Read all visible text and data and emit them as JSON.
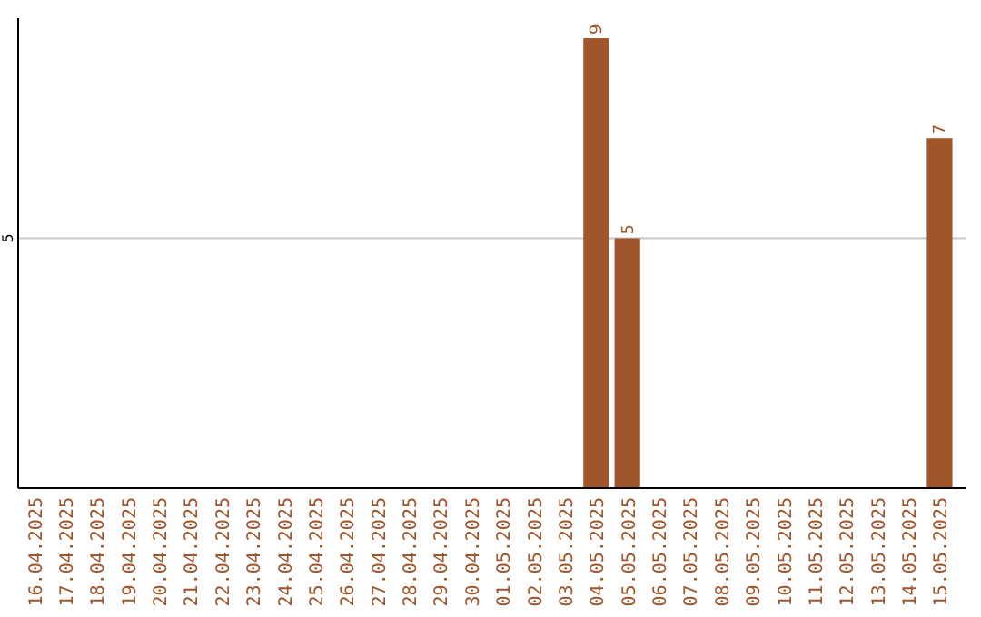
{
  "chart_data": {
    "type": "bar",
    "categories": [
      "16.04.2025",
      "17.04.2025",
      "18.04.2025",
      "19.04.2025",
      "20.04.2025",
      "21.04.2025",
      "22.04.2025",
      "23.04.2025",
      "24.04.2025",
      "25.04.2025",
      "26.04.2025",
      "27.04.2025",
      "28.04.2025",
      "29.04.2025",
      "30.04.2025",
      "01.05.2025",
      "02.05.2025",
      "03.05.2025",
      "04.05.2025",
      "05.05.2025",
      "06.05.2025",
      "07.05.2025",
      "08.05.2025",
      "09.05.2025",
      "10.05.2025",
      "11.05.2025",
      "12.05.2025",
      "13.05.2025",
      "14.05.2025",
      "15.05.2025"
    ],
    "values": [
      null,
      null,
      null,
      null,
      null,
      null,
      null,
      null,
      null,
      null,
      null,
      null,
      null,
      null,
      null,
      null,
      null,
      null,
      9,
      5,
      null,
      null,
      null,
      null,
      null,
      null,
      null,
      null,
      null,
      7
    ],
    "color": "#a0552a",
    "ylim": [
      0,
      9.4
    ],
    "yticks": [
      5
    ],
    "grid": "y",
    "data_labels": true
  }
}
